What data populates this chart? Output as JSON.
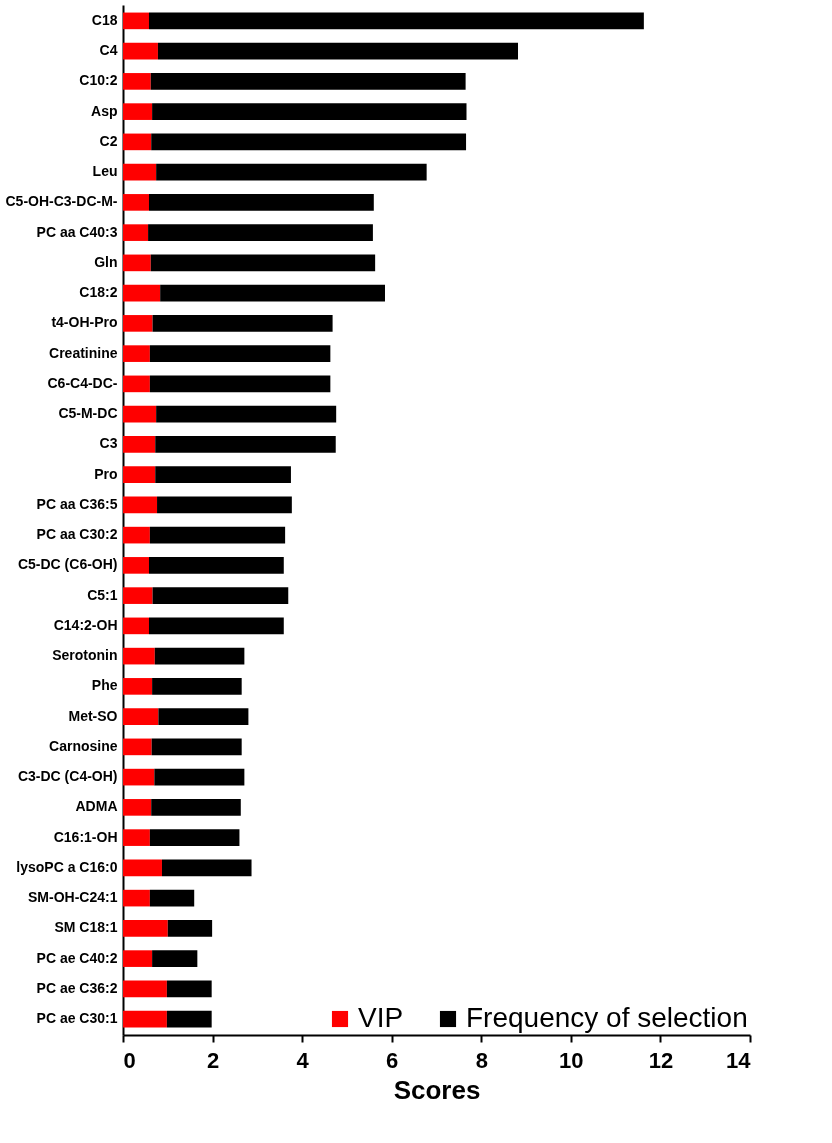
{
  "chart_data": {
    "type": "bar",
    "orientation": "horizontal",
    "stacked": true,
    "xlabel": "Scores",
    "categories": [
      "C18",
      "C4",
      "C10:2",
      "Asp",
      "C2",
      "Leu",
      "C5-OH-C3-DC-M-",
      "PC aa C40:3",
      "Gln",
      "C18:2",
      "t4-OH-Pro",
      "Creatinine",
      "C6-C4-DC-",
      "C5-M-DC",
      "C3",
      "Pro",
      "PC aa C36:5",
      "PC aa C30:2",
      "C5-DC (C6-OH)",
      "C5:1",
      "C14:2-OH",
      "Serotonin",
      "Phe",
      "Met-SO",
      "Carnosine",
      "C3-DC (C4-OH)",
      "ADMA",
      "C16:1-OH",
      "lysoPC a C16:0",
      "SM-OH-C24:1",
      "SM C18:1",
      "PC ae C40:2",
      "PC ae C36:2",
      "PC ae C30:1"
    ],
    "series": [
      {
        "name": "VIP",
        "color": "#ff0000",
        "values": [
          0.58,
          0.78,
          0.62,
          0.65,
          0.63,
          0.74,
          0.58,
          0.56,
          0.62,
          0.83,
          0.66,
          0.6,
          0.6,
          0.74,
          0.72,
          0.72,
          0.76,
          0.6,
          0.58,
          0.66,
          0.58,
          0.71,
          0.65,
          0.79,
          0.64,
          0.7,
          0.63,
          0.6,
          0.87,
          0.6,
          1.0,
          0.65,
          0.98,
          0.98
        ]
      },
      {
        "name": "Frequency of selection",
        "color": "#000000",
        "values": [
          11.05,
          8.04,
          7.03,
          7.02,
          7.03,
          6.04,
          5.02,
          5.02,
          5.01,
          5.02,
          4.02,
          4.03,
          4.03,
          4.02,
          4.03,
          3.03,
          3.01,
          3.02,
          3.01,
          3.03,
          3.01,
          2.0,
          2.0,
          2.01,
          2.01,
          2.01,
          2.0,
          2.0,
          2.0,
          0.99,
          0.99,
          1.01,
          1.0,
          1.0
        ]
      }
    ],
    "xlim": [
      0,
      14
    ],
    "xticks": [
      0,
      2,
      4,
      6,
      8,
      10,
      12,
      14
    ],
    "grid": false,
    "legend": "bottom right"
  }
}
